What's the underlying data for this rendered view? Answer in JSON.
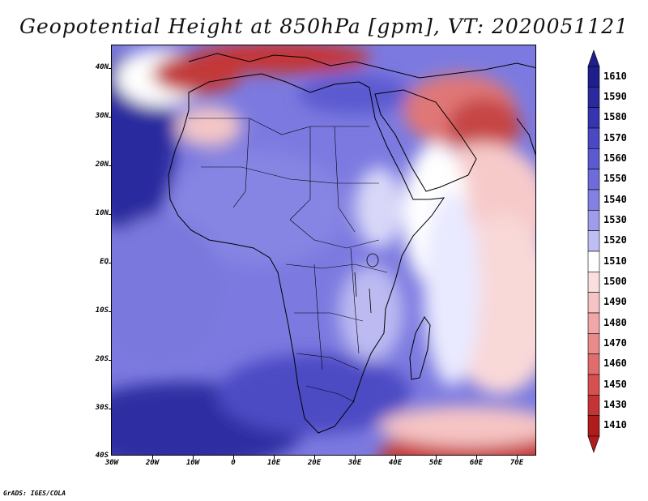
{
  "title": "Geopotential Height at 850hPa [gpm], VT: 2020051121",
  "credit": "GrADS: IGES/COLA",
  "map": {
    "variable": "Geopotential Height",
    "level": "850hPa",
    "units": "gpm",
    "valid_time": "2020051121",
    "lat_labels": [
      "40N",
      "30N",
      "20N",
      "10N",
      "EQ",
      "10S",
      "20S",
      "30S",
      "40S"
    ],
    "lon_labels": [
      "30W",
      "20W",
      "10W",
      "0",
      "10E",
      "20E",
      "30E",
      "40E",
      "50E",
      "60E",
      "70E"
    ]
  },
  "colorbar": {
    "labels": [
      "1610",
      "1590",
      "1580",
      "1570",
      "1560",
      "1550",
      "1540",
      "1530",
      "1520",
      "1510",
      "1500",
      "1490",
      "1480",
      "1470",
      "1460",
      "1450",
      "1430",
      "1410"
    ],
    "colors": [
      "#1e1e8c",
      "#2a2a9e",
      "#3535b0",
      "#4a48c2",
      "#5c5ad0",
      "#6e6cda",
      "#8280e2",
      "#9e9ceb",
      "#bfbef4",
      "#ffffff",
      "#fbdede",
      "#f6c4c4",
      "#f0a7a7",
      "#e98b8b",
      "#e06c6c",
      "#d65050",
      "#c53434",
      "#b01c1c"
    ]
  }
}
